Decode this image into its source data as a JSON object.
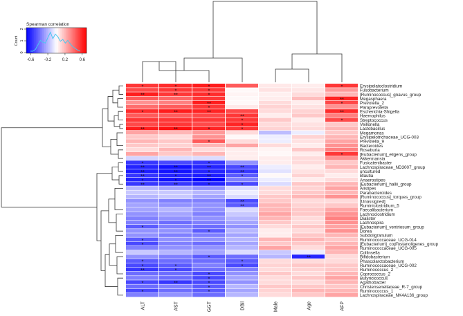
{
  "chart_data": {
    "type": "heatmap",
    "title": "Spearman correlation",
    "colorbar": {
      "ticks": [
        "-0.6",
        "-0.2",
        "0.2",
        "0.6"
      ],
      "range": [
        -0.7,
        0.7
      ],
      "ylabel": "Count",
      "yticks": [
        "0",
        "1",
        "2"
      ],
      "low_color": "#0000ff",
      "mid_color": "#ffffff",
      "high_color": "#ff0000"
    },
    "columns": [
      "ALT",
      "AST",
      "GGT",
      "DBil",
      "Male",
      "Age",
      "AFP"
    ],
    "rows": [
      {
        "name": "Erysipelatoclostridium",
        "v": [
          0.55,
          0.58,
          0.62,
          0.45,
          0.06,
          0.05,
          0.55
        ],
        "sig": [
          "*",
          "*",
          "*",
          "",
          "",
          "",
          "*"
        ]
      },
      {
        "name": "Fusobacterium",
        "v": [
          0.5,
          0.55,
          0.55,
          0.02,
          0.08,
          0.07,
          0.28
        ],
        "sig": [
          "",
          "*",
          "*",
          "",
          "",
          "",
          ""
        ]
      },
      {
        "name": "[Ruminococcus]_gnavus_group",
        "v": [
          0.62,
          0.55,
          0.58,
          0.03,
          0.04,
          0.1,
          0.2
        ],
        "sig": [
          "**",
          "**",
          "*",
          "",
          "",
          "",
          ""
        ]
      },
      {
        "name": "Megasphaera",
        "v": [
          0.45,
          0.42,
          0.55,
          0.02,
          0.05,
          0.18,
          0.6
        ],
        "sig": [
          "",
          "",
          "",
          "",
          "",
          "",
          "**"
        ]
      },
      {
        "name": "Prevotella_2",
        "v": [
          0.3,
          0.35,
          0.62,
          0.02,
          0.1,
          0.05,
          0.5
        ],
        "sig": [
          "",
          "",
          "**",
          "",
          "",
          "",
          "*"
        ]
      },
      {
        "name": "Paraprevotella",
        "v": [
          0.4,
          0.45,
          0.55,
          0.06,
          0.12,
          0.08,
          0.3
        ],
        "sig": [
          "",
          "",
          "*",
          "",
          "",
          "",
          ""
        ]
      },
      {
        "name": "Escherichia-Shigella",
        "v": [
          0.58,
          0.62,
          0.6,
          0.5,
          0.1,
          0.12,
          0.58
        ],
        "sig": [
          "*",
          "**",
          "**",
          "",
          "",
          "",
          "**"
        ]
      },
      {
        "name": "Haemophilus",
        "v": [
          0.45,
          0.45,
          0.5,
          0.55,
          0.05,
          0.15,
          0.35
        ],
        "sig": [
          "",
          "",
          "",
          "**",
          "",
          "",
          ""
        ]
      },
      {
        "name": "Streptococcus",
        "v": [
          0.55,
          0.55,
          0.55,
          0.55,
          0.15,
          0.05,
          0.5
        ],
        "sig": [
          "",
          "",
          "",
          "*",
          "",
          "",
          "*"
        ]
      },
      {
        "name": "Veillonella",
        "v": [
          0.5,
          0.55,
          0.5,
          0.6,
          0.1,
          0.08,
          0.15
        ],
        "sig": [
          "",
          "",
          "",
          "*",
          "",
          "",
          ""
        ]
      },
      {
        "name": "Lactobacillus",
        "v": [
          0.62,
          0.65,
          0.6,
          0.55,
          0.12,
          0.1,
          0.2
        ],
        "sig": [
          "**",
          "**",
          "*",
          "*",
          "",
          "",
          ""
        ]
      },
      {
        "name": "Megamonas",
        "v": [
          0.25,
          0.2,
          0.28,
          0.1,
          -0.18,
          -0.05,
          0.15
        ],
        "sig": [
          "",
          "",
          "",
          "",
          "",
          "",
          ""
        ]
      },
      {
        "name": "Erysipelotrichaceae_UCG-003",
        "v": [
          0.15,
          0.1,
          0.3,
          0.02,
          -0.05,
          0.12,
          0.2
        ],
        "sig": [
          "",
          "",
          "",
          "",
          "",
          "",
          ""
        ]
      },
      {
        "name": "Prevotella_9",
        "v": [
          0.2,
          0.15,
          0.45,
          0.1,
          -0.05,
          0.08,
          0.25
        ],
        "sig": [
          "",
          "",
          "*",
          "",
          "",
          "",
          ""
        ]
      },
      {
        "name": "Bacteroides",
        "v": [
          0.15,
          0.12,
          0.2,
          0.25,
          0.1,
          0.05,
          0.3
        ],
        "sig": [
          "",
          "",
          "",
          "",
          "",
          "",
          ""
        ]
      },
      {
        "name": "Roseburia",
        "v": [
          0.1,
          0.2,
          0.1,
          0.05,
          0.03,
          0.15,
          0.35
        ],
        "sig": [
          "",
          "",
          "",
          "",
          "",
          "",
          ""
        ]
      },
      {
        "name": "[Eubacterium]_eligens_group",
        "v": [
          0.25,
          0.15,
          0.2,
          0.05,
          0.02,
          0.05,
          0.55
        ],
        "sig": [
          "",
          "",
          "",
          "",
          "",
          "",
          "*"
        ]
      },
      {
        "name": "Akkermansia",
        "v": [
          -0.12,
          -0.1,
          -0.1,
          0.05,
          0.05,
          0.1,
          0.3
        ],
        "sig": [
          "",
          "",
          "",
          "",
          "",
          "",
          ""
        ]
      },
      {
        "name": "Fusicatenibacter",
        "v": [
          -0.55,
          -0.5,
          -0.55,
          -0.3,
          0.05,
          0.1,
          0.15
        ],
        "sig": [
          "*",
          "",
          "*",
          "",
          "",
          "",
          ""
        ]
      },
      {
        "name": "Lachnospiraceae_ND3007_group",
        "v": [
          -0.6,
          -0.65,
          -0.6,
          -0.5,
          -0.05,
          0.05,
          0.2
        ],
        "sig": [
          "**",
          "**",
          "**",
          "**",
          "",
          "",
          ""
        ]
      },
      {
        "name": "uncultured",
        "v": [
          -0.62,
          -0.65,
          -0.6,
          -0.55,
          -0.08,
          0.08,
          0.1
        ],
        "sig": [
          "**",
          "**",
          "*",
          "**",
          "",
          "",
          ""
        ]
      },
      {
        "name": "Blautia",
        "v": [
          -0.55,
          -0.6,
          -0.62,
          -0.45,
          0.02,
          0.12,
          0.05
        ],
        "sig": [
          "**",
          "*",
          "**",
          "*",
          "",
          "",
          ""
        ]
      },
      {
        "name": "Anaerostipes",
        "v": [
          -0.6,
          -0.65,
          -0.7,
          -0.35,
          -0.05,
          0.05,
          0.1
        ],
        "sig": [
          "*",
          "*",
          "**",
          "",
          "",
          "",
          ""
        ]
      },
      {
        "name": "[Eubacterium]_hallii_group",
        "v": [
          -0.55,
          -0.55,
          -0.6,
          -0.5,
          -0.1,
          0.15,
          0.2
        ],
        "sig": [
          "**",
          "**",
          "*",
          "*",
          "",
          "",
          ""
        ]
      },
      {
        "name": "Alistipes",
        "v": [
          -0.2,
          -0.25,
          -0.3,
          -0.1,
          0.1,
          0.12,
          0.25
        ],
        "sig": [
          "",
          "",
          "",
          "",
          "",
          "",
          ""
        ]
      },
      {
        "name": "Parabacteroides",
        "v": [
          -0.15,
          -0.15,
          -0.2,
          -0.05,
          0.1,
          0.15,
          0.2
        ],
        "sig": [
          "",
          "",
          "",
          "",
          "",
          "",
          ""
        ]
      },
      {
        "name": "[Ruminococcus]_torques_group",
        "v": [
          -0.2,
          -0.15,
          -0.25,
          -0.1,
          0.15,
          0.2,
          0.3
        ],
        "sig": [
          "",
          "",
          "",
          "",
          "",
          "",
          ""
        ]
      },
      {
        "name": "[Unassigned]",
        "v": [
          -0.3,
          -0.35,
          -0.35,
          -0.5,
          0.15,
          0.1,
          0.1
        ],
        "sig": [
          "",
          "",
          "",
          "**",
          "",
          "",
          ""
        ]
      },
      {
        "name": "Ruminiclostridium_5",
        "v": [
          -0.25,
          -0.3,
          -0.3,
          -0.45,
          0.2,
          0.12,
          0.15
        ],
        "sig": [
          "",
          "",
          "",
          "**",
          "",
          "",
          ""
        ]
      },
      {
        "name": "Faecalibacterium",
        "v": [
          -0.25,
          -0.2,
          -0.3,
          -0.1,
          0.2,
          0.15,
          0.25
        ],
        "sig": [
          "",
          "",
          "",
          "",
          "",
          "",
          ""
        ]
      },
      {
        "name": "Lachnoclostridium",
        "v": [
          -0.3,
          -0.25,
          -0.35,
          -0.15,
          0.25,
          0.15,
          0.3
        ],
        "sig": [
          "",
          "",
          "",
          "",
          "",
          "",
          ""
        ]
      },
      {
        "name": "Dialister",
        "v": [
          -0.35,
          -0.3,
          -0.3,
          -0.2,
          0.2,
          0.1,
          0.35
        ],
        "sig": [
          "",
          "",
          "",
          "",
          "",
          "",
          ""
        ]
      },
      {
        "name": "Lachnospira",
        "v": [
          -0.35,
          -0.4,
          -0.35,
          -0.25,
          0.15,
          0.1,
          0.3
        ],
        "sig": [
          "",
          "",
          "",
          "",
          "",
          "",
          ""
        ]
      },
      {
        "name": "[Eubacterium]_ventriosum_group",
        "v": [
          -0.45,
          -0.35,
          -0.4,
          -0.3,
          0.1,
          0.15,
          0.25
        ],
        "sig": [
          "*",
          "",
          "",
          "",
          "",
          "",
          ""
        ]
      },
      {
        "name": "Dorea",
        "v": [
          -0.3,
          -0.3,
          -0.45,
          -0.2,
          0.05,
          0.1,
          0.3
        ],
        "sig": [
          "",
          "",
          "*",
          "",
          "",
          "",
          ""
        ]
      },
      {
        "name": "Subdoligranulum",
        "v": [
          -0.3,
          -0.35,
          -0.35,
          -0.25,
          0.05,
          0.15,
          0.2
        ],
        "sig": [
          "",
          "",
          "",
          "",
          "",
          "",
          ""
        ]
      },
      {
        "name": "Ruminococcaceae_UCG-014",
        "v": [
          -0.45,
          -0.3,
          -0.3,
          -0.2,
          0.2,
          0.2,
          0.15
        ],
        "sig": [
          "*",
          "",
          "",
          "",
          "",
          "",
          ""
        ]
      },
      {
        "name": "[Eubacterium]_coprostanoligenes_group",
        "v": [
          -0.5,
          -0.35,
          -0.4,
          -0.25,
          0.15,
          0.15,
          0.2
        ],
        "sig": [
          "*",
          "",
          "",
          "",
          "",
          "",
          ""
        ]
      },
      {
        "name": "Ruminococcaceae_UCG-005",
        "v": [
          -0.35,
          -0.3,
          -0.3,
          -0.2,
          0.25,
          0.1,
          0.25
        ],
        "sig": [
          "",
          "",
          "",
          "",
          "",
          "",
          ""
        ]
      },
      {
        "name": "Collinsella",
        "v": [
          -0.15,
          -0.2,
          -0.25,
          -0.1,
          -0.15,
          -0.05,
          0.2
        ],
        "sig": [
          "",
          "",
          "",
          "",
          "",
          "",
          ""
        ]
      },
      {
        "name": "Bifidobacterium",
        "v": [
          -0.3,
          -0.35,
          -0.45,
          -0.4,
          -0.2,
          -0.6,
          0.1
        ],
        "sig": [
          "",
          "",
          "*",
          "",
          "",
          "**",
          ""
        ]
      },
      {
        "name": "Phascolarctobacterium",
        "v": [
          -0.45,
          -0.4,
          -0.4,
          -0.45,
          0.1,
          0.1,
          0.1
        ],
        "sig": [
          "*",
          "",
          "",
          "*",
          "",
          "",
          ""
        ]
      },
      {
        "name": "Ruminococcaceae_UCG-002",
        "v": [
          -0.5,
          -0.45,
          -0.35,
          -0.5,
          0.12,
          0.15,
          0.15
        ],
        "sig": [
          "*",
          "*",
          "",
          "*",
          "",
          "",
          ""
        ]
      },
      {
        "name": "Ruminococcus_2",
        "v": [
          -0.55,
          -0.5,
          -0.4,
          -0.35,
          0.1,
          0.12,
          0.15
        ],
        "sig": [
          "**",
          "*",
          "",
          "",
          "",
          "",
          ""
        ]
      },
      {
        "name": "Coprococcus_2",
        "v": [
          -0.4,
          -0.4,
          -0.5,
          -0.3,
          0.15,
          0.1,
          0.2
        ],
        "sig": [
          "",
          "",
          "*",
          "",
          "",
          "",
          ""
        ]
      },
      {
        "name": "Butyricicoccus",
        "v": [
          -0.35,
          -0.4,
          -0.5,
          -0.25,
          0.1,
          0.15,
          0.25
        ],
        "sig": [
          "",
          "",
          "*",
          "",
          "",
          "",
          ""
        ]
      },
      {
        "name": "Agathobacter",
        "v": [
          -0.5,
          -0.55,
          -0.5,
          -0.3,
          0.1,
          0.1,
          0.2
        ],
        "sig": [
          "*",
          "**",
          "*",
          "",
          "",
          "",
          ""
        ]
      },
      {
        "name": "Christensenellaceae_R-7_group",
        "v": [
          -0.4,
          -0.35,
          -0.45,
          -0.2,
          0.15,
          0.15,
          0.15
        ],
        "sig": [
          "",
          "",
          "*",
          "",
          "",
          "",
          ""
        ]
      },
      {
        "name": "Ruminococcus_1",
        "v": [
          -0.5,
          -0.4,
          -0.45,
          -0.25,
          0.12,
          0.2,
          0.2
        ],
        "sig": [
          "*",
          "",
          "*",
          "",
          "",
          "",
          ""
        ]
      },
      {
        "name": "Lachnospiraceae_NK4A136_group",
        "v": [
          -0.35,
          -0.3,
          -0.4,
          -0.2,
          0.1,
          0.15,
          0.25
        ],
        "sig": [
          "",
          "",
          "",
          "",
          "",
          "",
          ""
        ]
      }
    ]
  }
}
